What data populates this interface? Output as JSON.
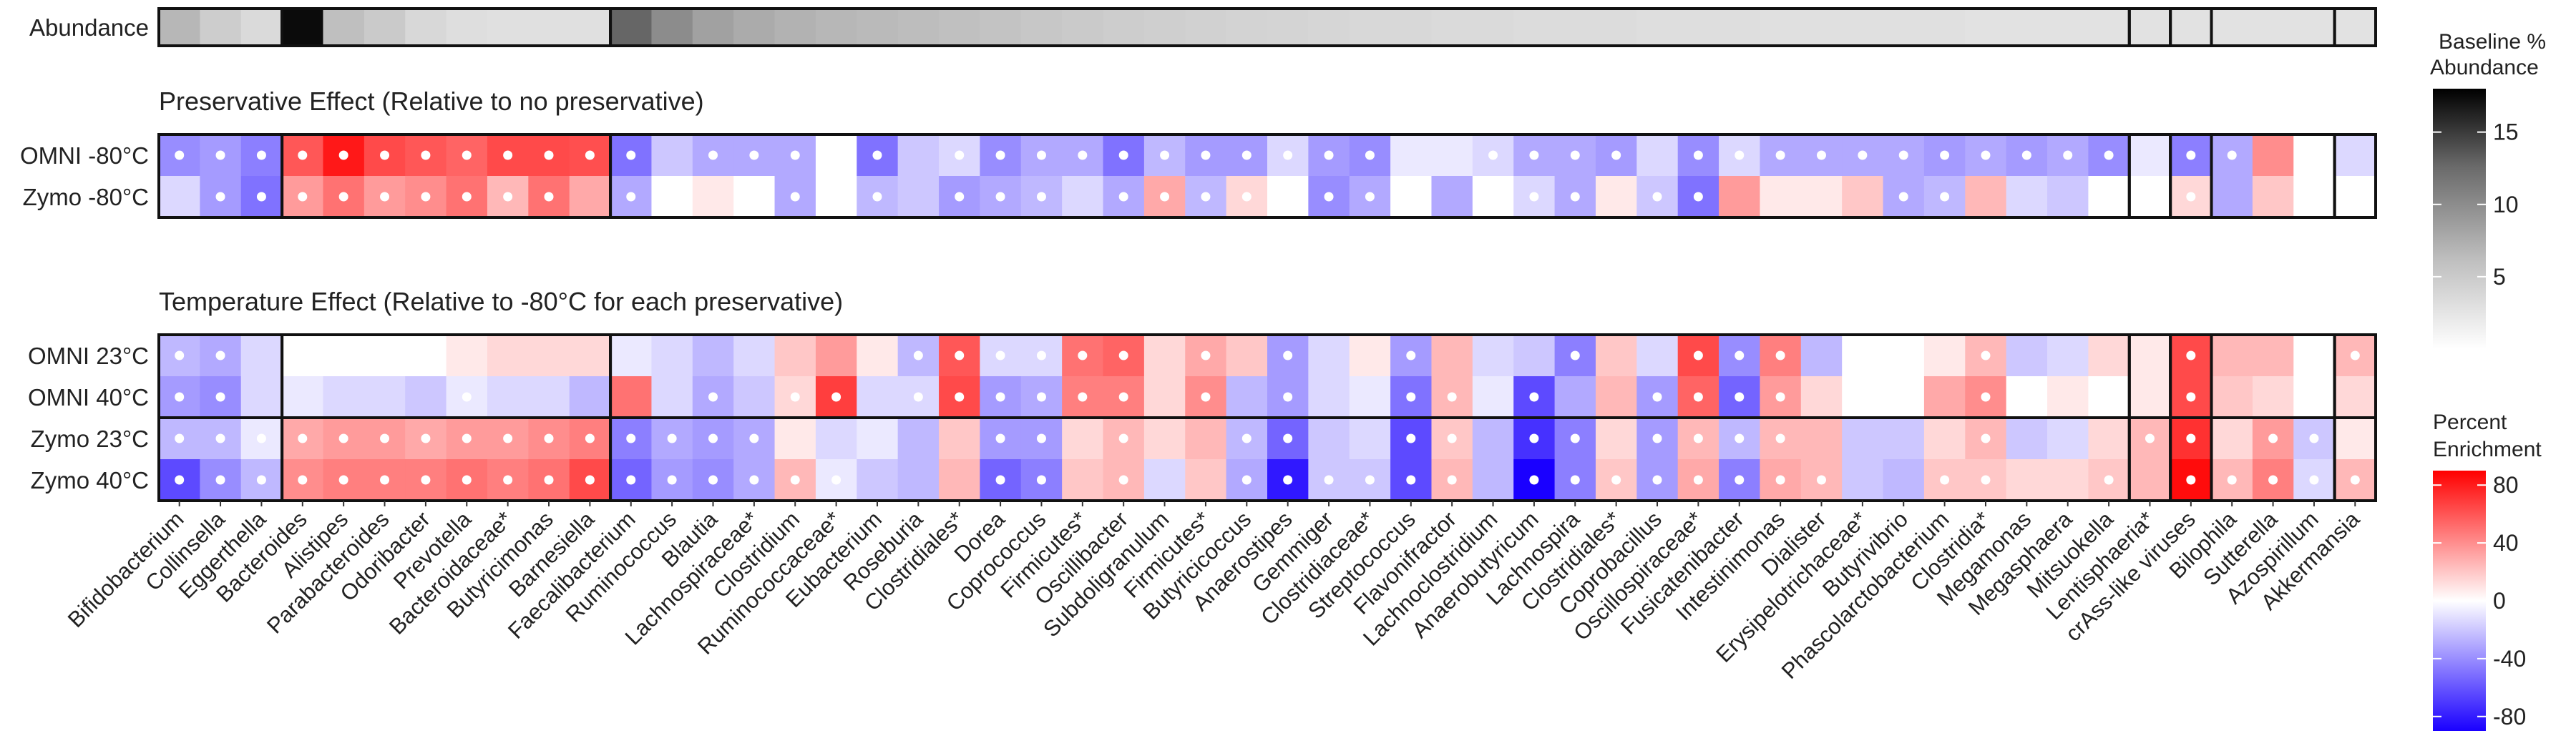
{
  "chart_data": {
    "type": "heatmap",
    "taxa": [
      "Bifidobacterium",
      "Collinsella",
      "Eggerthella",
      "Bacteroides",
      "Alistipes",
      "Parabacteroides",
      "Odoribacter",
      "Prevotella",
      "Bacteroidaceae*",
      "Butyricimonas",
      "Barnesiella",
      "Faecalibacterium",
      "Ruminococcus",
      "Blautia",
      "Lachnospiraceae*",
      "Clostridium",
      "Ruminococcaceae*",
      "Eubacterium",
      "Roseburia",
      "Clostridiales*",
      "Dorea",
      "Coprococcus",
      "Firmicutes*",
      "Oscillibacter",
      "Subdoligranulum",
      "Firmicutes*",
      "Butyricicoccus",
      "Anaerostipes",
      "Gemmiger",
      "Clostridiaceae*",
      "Streptococcus",
      "Flavonifractor",
      "Lachnoclostridium",
      "Anaerobutyricum",
      "Lachnospira",
      "Clostridiales*",
      "Coprobacillus",
      "Oscillospiraceae*",
      "Fusicatenibacter",
      "Intestinimonas",
      "Dialister",
      "Erysipelotrichaceae*",
      "Butyrivibrio",
      "Phascolarctobacterium",
      "Clostridia*",
      "Megamonas",
      "Megasphaera",
      "Mitsuokella",
      "Lentisphaeria*",
      "crAss-like viruses",
      "Bilophila",
      "Sutterella",
      "Azospirillum",
      "Akkermansia"
    ],
    "group_sizes": [
      3,
      8,
      37,
      1,
      1,
      3,
      1
    ],
    "abundance": {
      "row_label": "Abundance",
      "values": [
        3.0,
        1.6,
        0.9,
        17.0,
        2.5,
        1.8,
        1.0,
        0.7,
        0.6,
        0.6,
        0.6,
        9.0,
        6.0,
        4.5,
        3.8,
        3.3,
        3.0,
        2.8,
        2.6,
        2.4,
        2.2,
        2.0,
        1.8,
        1.6,
        1.5,
        1.4,
        1.3,
        1.2,
        1.1,
        1.0,
        1.0,
        0.9,
        0.9,
        0.8,
        0.8,
        0.8,
        0.7,
        0.7,
        0.7,
        0.6,
        0.6,
        0.6,
        0.6,
        0.6,
        0.5,
        0.5,
        0.5,
        0.5,
        0.5,
        0.5,
        0.5,
        0.5,
        0.5,
        0.5
      ],
      "legend_title": [
        "Baseline %",
        "Abundance"
      ],
      "ticks": [
        5,
        10,
        15
      ],
      "range": [
        0,
        18
      ]
    },
    "preservative": {
      "title": "Preservative Effect (Relative to no preservative)",
      "rows": [
        {
          "label": "OMNI -80°C",
          "values": [
            -35,
            -30,
            -40,
            55,
            80,
            60,
            55,
            50,
            60,
            60,
            58,
            -45,
            -15,
            -25,
            -25,
            -25,
            0,
            -45,
            -15,
            -10,
            -35,
            -25,
            -25,
            -45,
            -20,
            -30,
            -30,
            -10,
            -30,
            -35,
            -5,
            -5,
            -10,
            -25,
            -25,
            -30,
            -10,
            -35,
            -10,
            -25,
            -25,
            -25,
            -25,
            -30,
            -25,
            -30,
            -25,
            -35,
            -5,
            -40,
            -25,
            35,
            0,
            -10
          ],
          "dots": [
            1,
            1,
            1,
            1,
            1,
            1,
            1,
            1,
            1,
            1,
            1,
            1,
            0,
            1,
            1,
            1,
            0,
            1,
            0,
            1,
            1,
            1,
            1,
            1,
            1,
            1,
            1,
            1,
            1,
            1,
            0,
            0,
            1,
            1,
            1,
            1,
            0,
            1,
            1,
            1,
            1,
            1,
            1,
            1,
            1,
            1,
            1,
            1,
            0,
            1,
            1,
            0,
            0,
            0
          ]
        },
        {
          "label": "Zymo -80°C",
          "values": [
            -10,
            -30,
            -45,
            30,
            45,
            30,
            35,
            45,
            20,
            45,
            25,
            -25,
            0,
            5,
            0,
            -25,
            0,
            -20,
            -15,
            -30,
            -25,
            -20,
            -10,
            -25,
            25,
            -20,
            10,
            0,
            -35,
            -25,
            0,
            -25,
            0,
            -10,
            -25,
            5,
            -15,
            -45,
            30,
            5,
            5,
            15,
            -25,
            -20,
            20,
            -10,
            -15,
            0,
            0,
            10,
            -25,
            15,
            0,
            0
          ],
          "dots": [
            0,
            1,
            1,
            1,
            1,
            1,
            1,
            1,
            1,
            1,
            0,
            1,
            0,
            0,
            0,
            1,
            0,
            1,
            0,
            1,
            1,
            1,
            0,
            1,
            1,
            1,
            1,
            0,
            1,
            1,
            0,
            0,
            1,
            1,
            1,
            0,
            1,
            1,
            0,
            0,
            0,
            0,
            1,
            1,
            0,
            0,
            0,
            0,
            0,
            1,
            0,
            0,
            0,
            0
          ]
        }
      ]
    },
    "temperature": {
      "title": "Temperature Effect (Relative to -80°C for each preservative)",
      "rows": [
        {
          "label": "OMNI 23°C",
          "values": [
            -20,
            -25,
            -10,
            0,
            0,
            0,
            0,
            5,
            10,
            10,
            10,
            -5,
            -10,
            -20,
            -10,
            15,
            30,
            5,
            -20,
            55,
            -10,
            -10,
            45,
            50,
            10,
            25,
            15,
            -30,
            -10,
            5,
            -30,
            20,
            -10,
            -15,
            -40,
            15,
            -10,
            60,
            -35,
            40,
            -20,
            0,
            0,
            5,
            20,
            -15,
            -10,
            10,
            5,
            60,
            20,
            20,
            0,
            20
          ],
          "dots": [
            1,
            1,
            0,
            0,
            0,
            0,
            0,
            0,
            0,
            0,
            0,
            0,
            0,
            0,
            0,
            0,
            0,
            0,
            1,
            1,
            1,
            1,
            1,
            1,
            0,
            1,
            0,
            1,
            0,
            0,
            1,
            0,
            0,
            0,
            1,
            0,
            0,
            1,
            1,
            1,
            0,
            0,
            0,
            0,
            1,
            0,
            0,
            0,
            0,
            1,
            0,
            0,
            0,
            1
          ]
        },
        {
          "label": "OMNI 40°C",
          "values": [
            -30,
            -35,
            -10,
            -5,
            -10,
            -10,
            -15,
            -5,
            -10,
            -10,
            -20,
            45,
            -10,
            -25,
            -15,
            10,
            65,
            -10,
            -10,
            60,
            -30,
            -25,
            40,
            40,
            10,
            35,
            -20,
            -30,
            -10,
            -5,
            -45,
            20,
            -5,
            -60,
            -25,
            20,
            -30,
            50,
            -50,
            30,
            10,
            0,
            0,
            25,
            35,
            0,
            5,
            0,
            5,
            60,
            15,
            10,
            0,
            10
          ],
          "dots": [
            1,
            1,
            0,
            0,
            0,
            0,
            0,
            1,
            0,
            0,
            0,
            0,
            0,
            1,
            0,
            1,
            1,
            0,
            1,
            1,
            1,
            1,
            1,
            1,
            0,
            1,
            0,
            1,
            0,
            0,
            1,
            1,
            0,
            1,
            0,
            0,
            1,
            1,
            1,
            1,
            0,
            0,
            0,
            0,
            1,
            0,
            0,
            0,
            0,
            1,
            0,
            0,
            0,
            0
          ]
        },
        {
          "label": "Zymo 23°C",
          "values": [
            -20,
            -20,
            -5,
            25,
            30,
            30,
            25,
            30,
            30,
            35,
            40,
            -40,
            -25,
            -30,
            -25,
            5,
            -10,
            -5,
            -20,
            15,
            -30,
            -30,
            10,
            20,
            10,
            20,
            -20,
            -50,
            -15,
            -10,
            -60,
            15,
            -20,
            -70,
            -40,
            10,
            -30,
            20,
            -20,
            20,
            20,
            -15,
            -15,
            10,
            20,
            -15,
            -10,
            10,
            20,
            70,
            10,
            30,
            -15,
            5
          ],
          "dots": [
            1,
            1,
            1,
            1,
            1,
            1,
            1,
            1,
            1,
            1,
            1,
            1,
            1,
            1,
            1,
            0,
            0,
            0,
            0,
            0,
            1,
            1,
            0,
            1,
            0,
            0,
            1,
            1,
            0,
            0,
            1,
            1,
            0,
            1,
            1,
            0,
            1,
            1,
            1,
            1,
            0,
            0,
            0,
            0,
            1,
            0,
            0,
            0,
            1,
            1,
            0,
            1,
            1,
            0
          ]
        },
        {
          "label": "Zymo 40°C",
          "values": [
            -60,
            -35,
            -20,
            35,
            40,
            40,
            40,
            45,
            40,
            45,
            60,
            -50,
            -30,
            -35,
            -25,
            20,
            -5,
            -15,
            -20,
            20,
            -50,
            -40,
            15,
            20,
            -10,
            15,
            -25,
            -80,
            -15,
            -15,
            -60,
            20,
            -20,
            -90,
            -40,
            15,
            -30,
            25,
            -40,
            25,
            20,
            -15,
            -20,
            15,
            15,
            10,
            10,
            15,
            20,
            85,
            20,
            40,
            -10,
            20
          ],
          "dots": [
            1,
            1,
            1,
            1,
            1,
            1,
            1,
            1,
            1,
            1,
            1,
            1,
            1,
            1,
            1,
            1,
            1,
            0,
            0,
            0,
            1,
            1,
            0,
            1,
            0,
            0,
            1,
            1,
            1,
            1,
            1,
            1,
            0,
            1,
            1,
            1,
            1,
            1,
            1,
            1,
            1,
            0,
            0,
            1,
            1,
            0,
            0,
            1,
            0,
            1,
            1,
            1,
            1,
            1
          ]
        }
      ]
    },
    "enrichment": {
      "legend_title": [
        "Percent",
        "Enrichment"
      ],
      "ticks": [
        80,
        40,
        0,
        -40,
        -80
      ],
      "range": [
        -90,
        90
      ]
    }
  }
}
